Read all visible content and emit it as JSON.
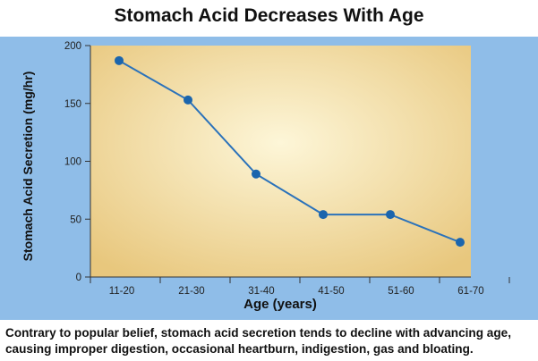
{
  "chart_data": {
    "type": "line",
    "title": "Stomach Acid Decreases With Age",
    "xlabel": "Age (years)",
    "ylabel": "Stomach Acid Secretion (mg/hr)",
    "categories": [
      "11-20",
      "21-30",
      "31-40",
      "41-50",
      "51-60",
      "61-70"
    ],
    "values": [
      187,
      153,
      89,
      54,
      54,
      30
    ],
    "yticks": [
      0,
      50,
      100,
      150,
      200
    ],
    "ylim": [
      0,
      200
    ],
    "grid": false,
    "legend": "none",
    "colors": {
      "line": "#2b72ba",
      "marker": "#1b65ad",
      "panel": "#8fbde8",
      "plot_center": "#fdf6d8",
      "plot_edge": "#e8c77d"
    }
  },
  "caption": {
    "line1": "Contrary to popular belief, stomach acid secretion tends to decline with advancing age,",
    "line2": "causing improper digestion, occasional heartburn, indigestion, gas and bloating."
  }
}
